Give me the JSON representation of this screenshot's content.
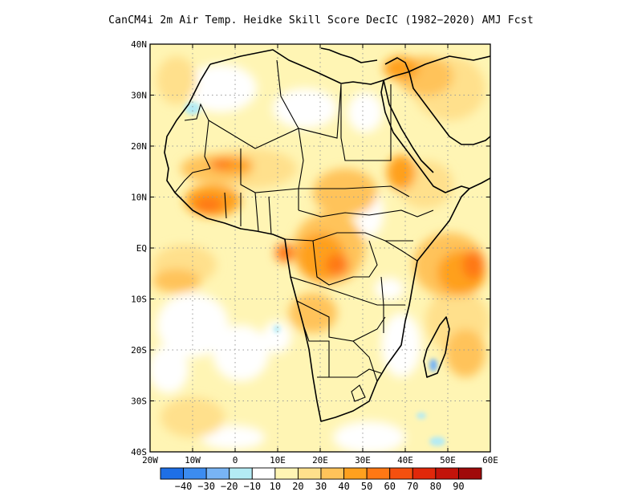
{
  "title": "CanCM4i  2m Air Temp. Heidke Skill Score DecIC (1982−2020) AMJ Fcst",
  "map": {
    "lon_range": [
      -20,
      60
    ],
    "lat_range": [
      -40,
      40
    ],
    "lon_ticks": [
      "20W",
      "10W",
      "0",
      "10E",
      "20E",
      "30E",
      "40E",
      "50E",
      "60E"
    ],
    "lat_ticks": [
      "40N",
      "30N",
      "20N",
      "10N",
      "EQ",
      "10S",
      "20S",
      "30S",
      "40S"
    ],
    "gridlines": "dotted"
  },
  "colorbar": {
    "labels": [
      "−40",
      "−30",
      "−20",
      "−10",
      "10",
      "20",
      "30",
      "40",
      "50",
      "60",
      "70",
      "80",
      "90"
    ],
    "colors": [
      "#1e6fe6",
      "#3c8cf0",
      "#78b4f5",
      "#b4ebf5",
      "#ffffff",
      "#fff5b4",
      "#ffe08c",
      "#ffc35a",
      "#ffa01e",
      "#ff7814",
      "#f5500f",
      "#e1280a",
      "#c3140a",
      "#a00a0a"
    ]
  }
}
